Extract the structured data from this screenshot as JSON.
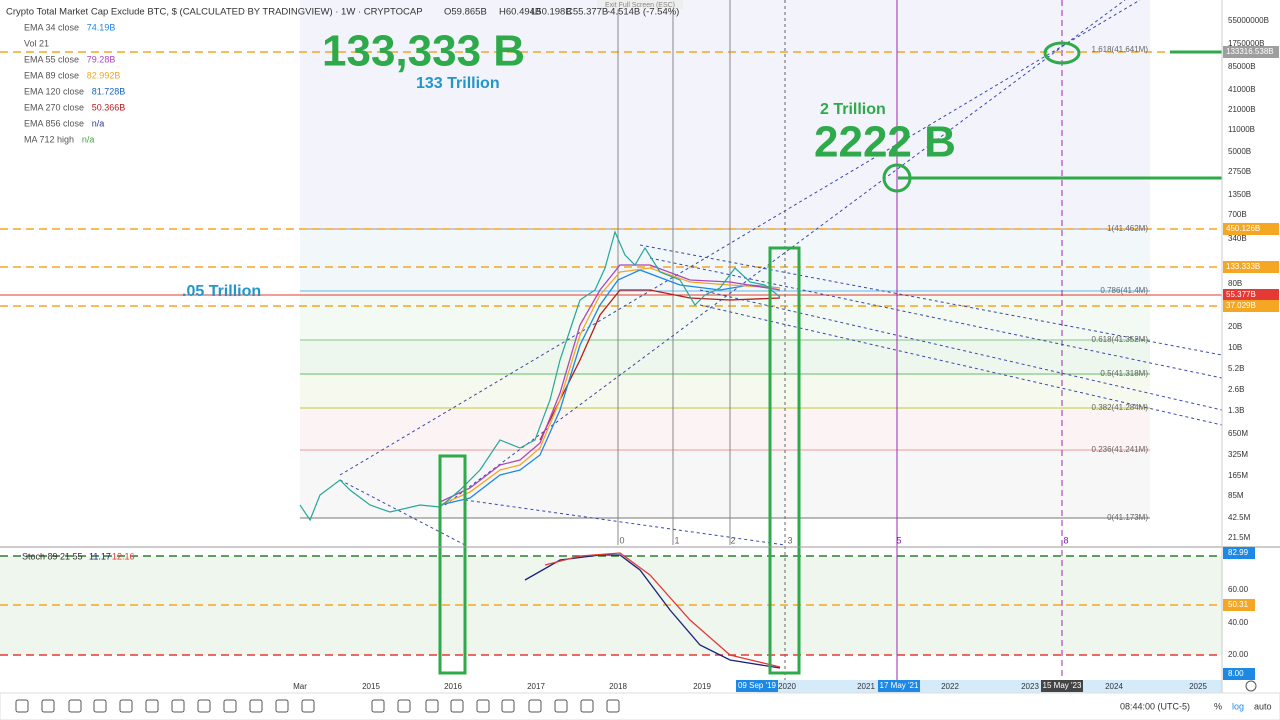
{
  "header": {
    "title": "Crypto Total Market Cap Exclude BTC, $ (CALCULATED BY TRADINGVIEW) · 1W · CRYPTOCAP",
    "open": "O59.865B",
    "high": "H60.494B",
    "low": "L50.198B",
    "close": "C55.377B",
    "change": "-4.514B (-7.54%)"
  },
  "tooltip": "Exit Full Screen (ESC)",
  "legend": [
    {
      "name": "EMA 34 close",
      "value": "74.19B",
      "color": "#1e88e5"
    },
    {
      "name": "Vol 21",
      "value": null,
      "color": "#555555"
    },
    {
      "name": "EMA 55 close",
      "value": "79.28B",
      "color": "#ab47bc"
    },
    {
      "name": "EMA 89 close",
      "value": "82.992B",
      "color": "#f5a623"
    },
    {
      "name": "EMA 120 close",
      "value": "81.728B",
      "color": "#1565c0"
    },
    {
      "name": "EMA 270 close",
      "value": "50.366B",
      "color": "#b71c1c"
    },
    {
      "name": "EMA 856 close",
      "value": "n/a",
      "color": "#283593"
    },
    {
      "name": "MA 712 high",
      "value": "n/a",
      "color": "#43a047"
    }
  ],
  "annotations": [
    "133,333 B",
    "133 Trillion",
    "2 Trillion",
    "2222 B",
    ".05 Trillion"
  ],
  "fib_levels": [
    "1.618(41.641M)",
    "1(41.462M)",
    "0.786(41.4M)",
    "0.618(41.352M)",
    "0.5(41.318M)",
    "0.382(41.284M)",
    "0.236(41.241M)",
    "0(41.173M)"
  ],
  "wave_counts": [
    "0",
    "1",
    "2",
    "3",
    "5",
    "8"
  ],
  "price_axis": {
    "labels": [
      "55000000B",
      "1750000B",
      "85000B",
      "41000B",
      "21000B",
      "11000B",
      "5000B",
      "2750B",
      "1350B",
      "700B",
      "340B",
      "80B",
      "20B",
      "10B",
      "5.2B",
      "2.6B",
      "1.3B",
      "650M",
      "325M",
      "165M",
      "85M",
      "42.5M",
      "21.5M"
    ],
    "markers": [
      "133316.538B",
      "450.126B",
      "133.333B",
      "55.377B",
      "37.029B"
    ]
  },
  "stoch": {
    "name": "Stoch 89 21 55",
    "k": "11.17",
    "d": "12.16",
    "axis_labels": [
      "60.00",
      "40.00",
      "20.00"
    ],
    "markers": [
      "82.99",
      "50.31",
      "8.00"
    ]
  },
  "time_axis": {
    "labels": [
      "Mar",
      "2015",
      "2016",
      "2017",
      "2018",
      "2019",
      "2020",
      "2021",
      "2022",
      "2023",
      "2024",
      "2025"
    ],
    "markers": [
      "09 Sep '19",
      "17 May '21",
      "15 May '23"
    ]
  },
  "status": {
    "time": "08:44:00 (UTC-5)",
    "percent": "%",
    "log": "log",
    "auto": "auto"
  }
}
